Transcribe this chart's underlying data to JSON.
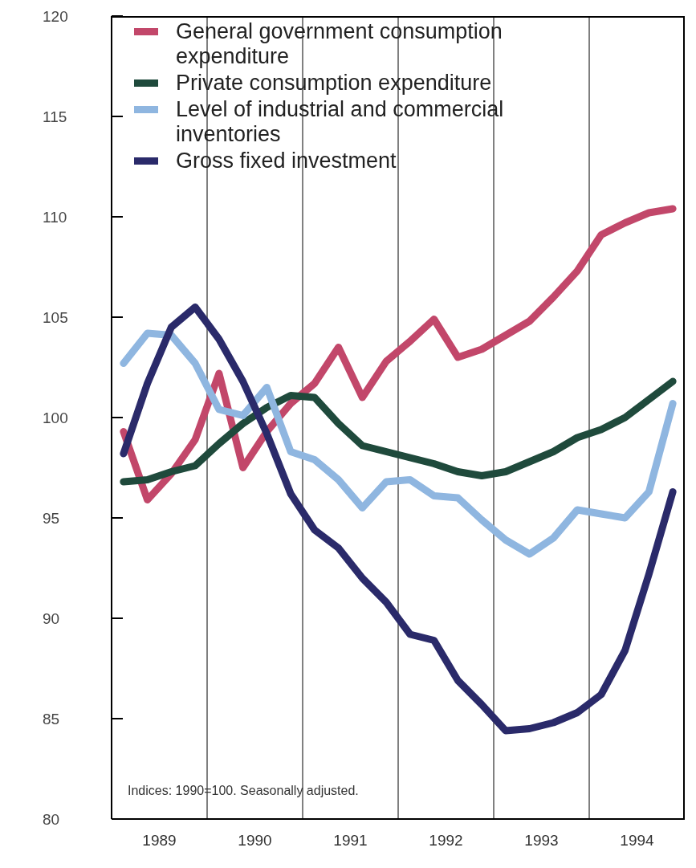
{
  "chart_data": {
    "type": "line",
    "x": [
      1989.125,
      1989.375,
      1989.625,
      1989.875,
      1990.125,
      1990.375,
      1990.625,
      1990.875,
      1991.125,
      1991.375,
      1991.625,
      1991.875,
      1992.125,
      1992.375,
      1992.625,
      1992.875,
      1993.125,
      1993.375,
      1993.625,
      1993.875,
      1994.125,
      1994.375,
      1994.625,
      1994.875
    ],
    "xlim": [
      1989,
      1995
    ],
    "xticks": [
      {
        "value": 1989.5,
        "label": "1989"
      },
      {
        "value": 1990.5,
        "label": "1990"
      },
      {
        "value": 1991.5,
        "label": "1991"
      },
      {
        "value": 1992.5,
        "label": "1992"
      },
      {
        "value": 1993.5,
        "label": "1993"
      },
      {
        "value": 1994.5,
        "label": "1994"
      }
    ],
    "ylim": [
      80,
      120
    ],
    "yticks": [
      80,
      85,
      90,
      95,
      100,
      105,
      110,
      115,
      120
    ],
    "marker": "none",
    "line_style": "solid",
    "legend": "top left",
    "ref_lines": [
      {
        "axis": "x",
        "value": 1990,
        "color": "#000000"
      },
      {
        "axis": "x",
        "value": 1991,
        "color": "#000000"
      },
      {
        "axis": "x",
        "value": 1992,
        "color": "#000000"
      },
      {
        "axis": "x",
        "value": 1993,
        "color": "#000000"
      },
      {
        "axis": "x",
        "value": 1994,
        "color": "#000000"
      }
    ],
    "annotations": [
      "Indices: 1990=100. Seasonally adjusted."
    ],
    "series": [
      {
        "name": "General government consumption expenditure",
        "color": "#c2476a",
        "values": [
          99.3,
          95.9,
          97.2,
          98.9,
          102.2,
          97.5,
          99.3,
          100.7,
          101.7,
          103.5,
          101.0,
          102.8,
          103.8,
          104.9,
          103.0,
          103.4,
          104.1,
          104.8,
          106.0,
          107.3,
          109.1,
          109.7,
          110.2,
          110.4
        ]
      },
      {
        "name": "Private consumption expenditure",
        "color": "#1f4a3c",
        "values": [
          96.8,
          96.9,
          97.3,
          97.6,
          98.7,
          99.7,
          100.5,
          101.1,
          101.0,
          99.7,
          98.6,
          98.3,
          98.0,
          97.7,
          97.3,
          97.1,
          97.3,
          97.8,
          98.3,
          99.0,
          99.4,
          100.0,
          100.9,
          101.8
        ]
      },
      {
        "name": "Level of industrial and commercial inventories",
        "color": "#8fb6e0",
        "values": [
          102.7,
          104.2,
          104.1,
          102.7,
          100.4,
          100.1,
          101.5,
          98.3,
          97.9,
          96.9,
          95.5,
          96.8,
          96.9,
          96.1,
          96.0,
          94.9,
          93.9,
          93.2,
          94.0,
          95.4,
          95.2,
          95.0,
          96.3,
          100.7
        ]
      },
      {
        "name": "Gross fixed investment",
        "color": "#2a2a6a",
        "values": [
          98.2,
          101.7,
          104.5,
          105.5,
          103.9,
          101.8,
          99.2,
          96.2,
          94.4,
          93.5,
          92.0,
          90.8,
          89.2,
          88.9,
          86.9,
          85.7,
          84.4,
          84.5,
          84.8,
          85.3,
          86.2,
          88.4,
          92.2,
          96.3
        ]
      }
    ]
  }
}
